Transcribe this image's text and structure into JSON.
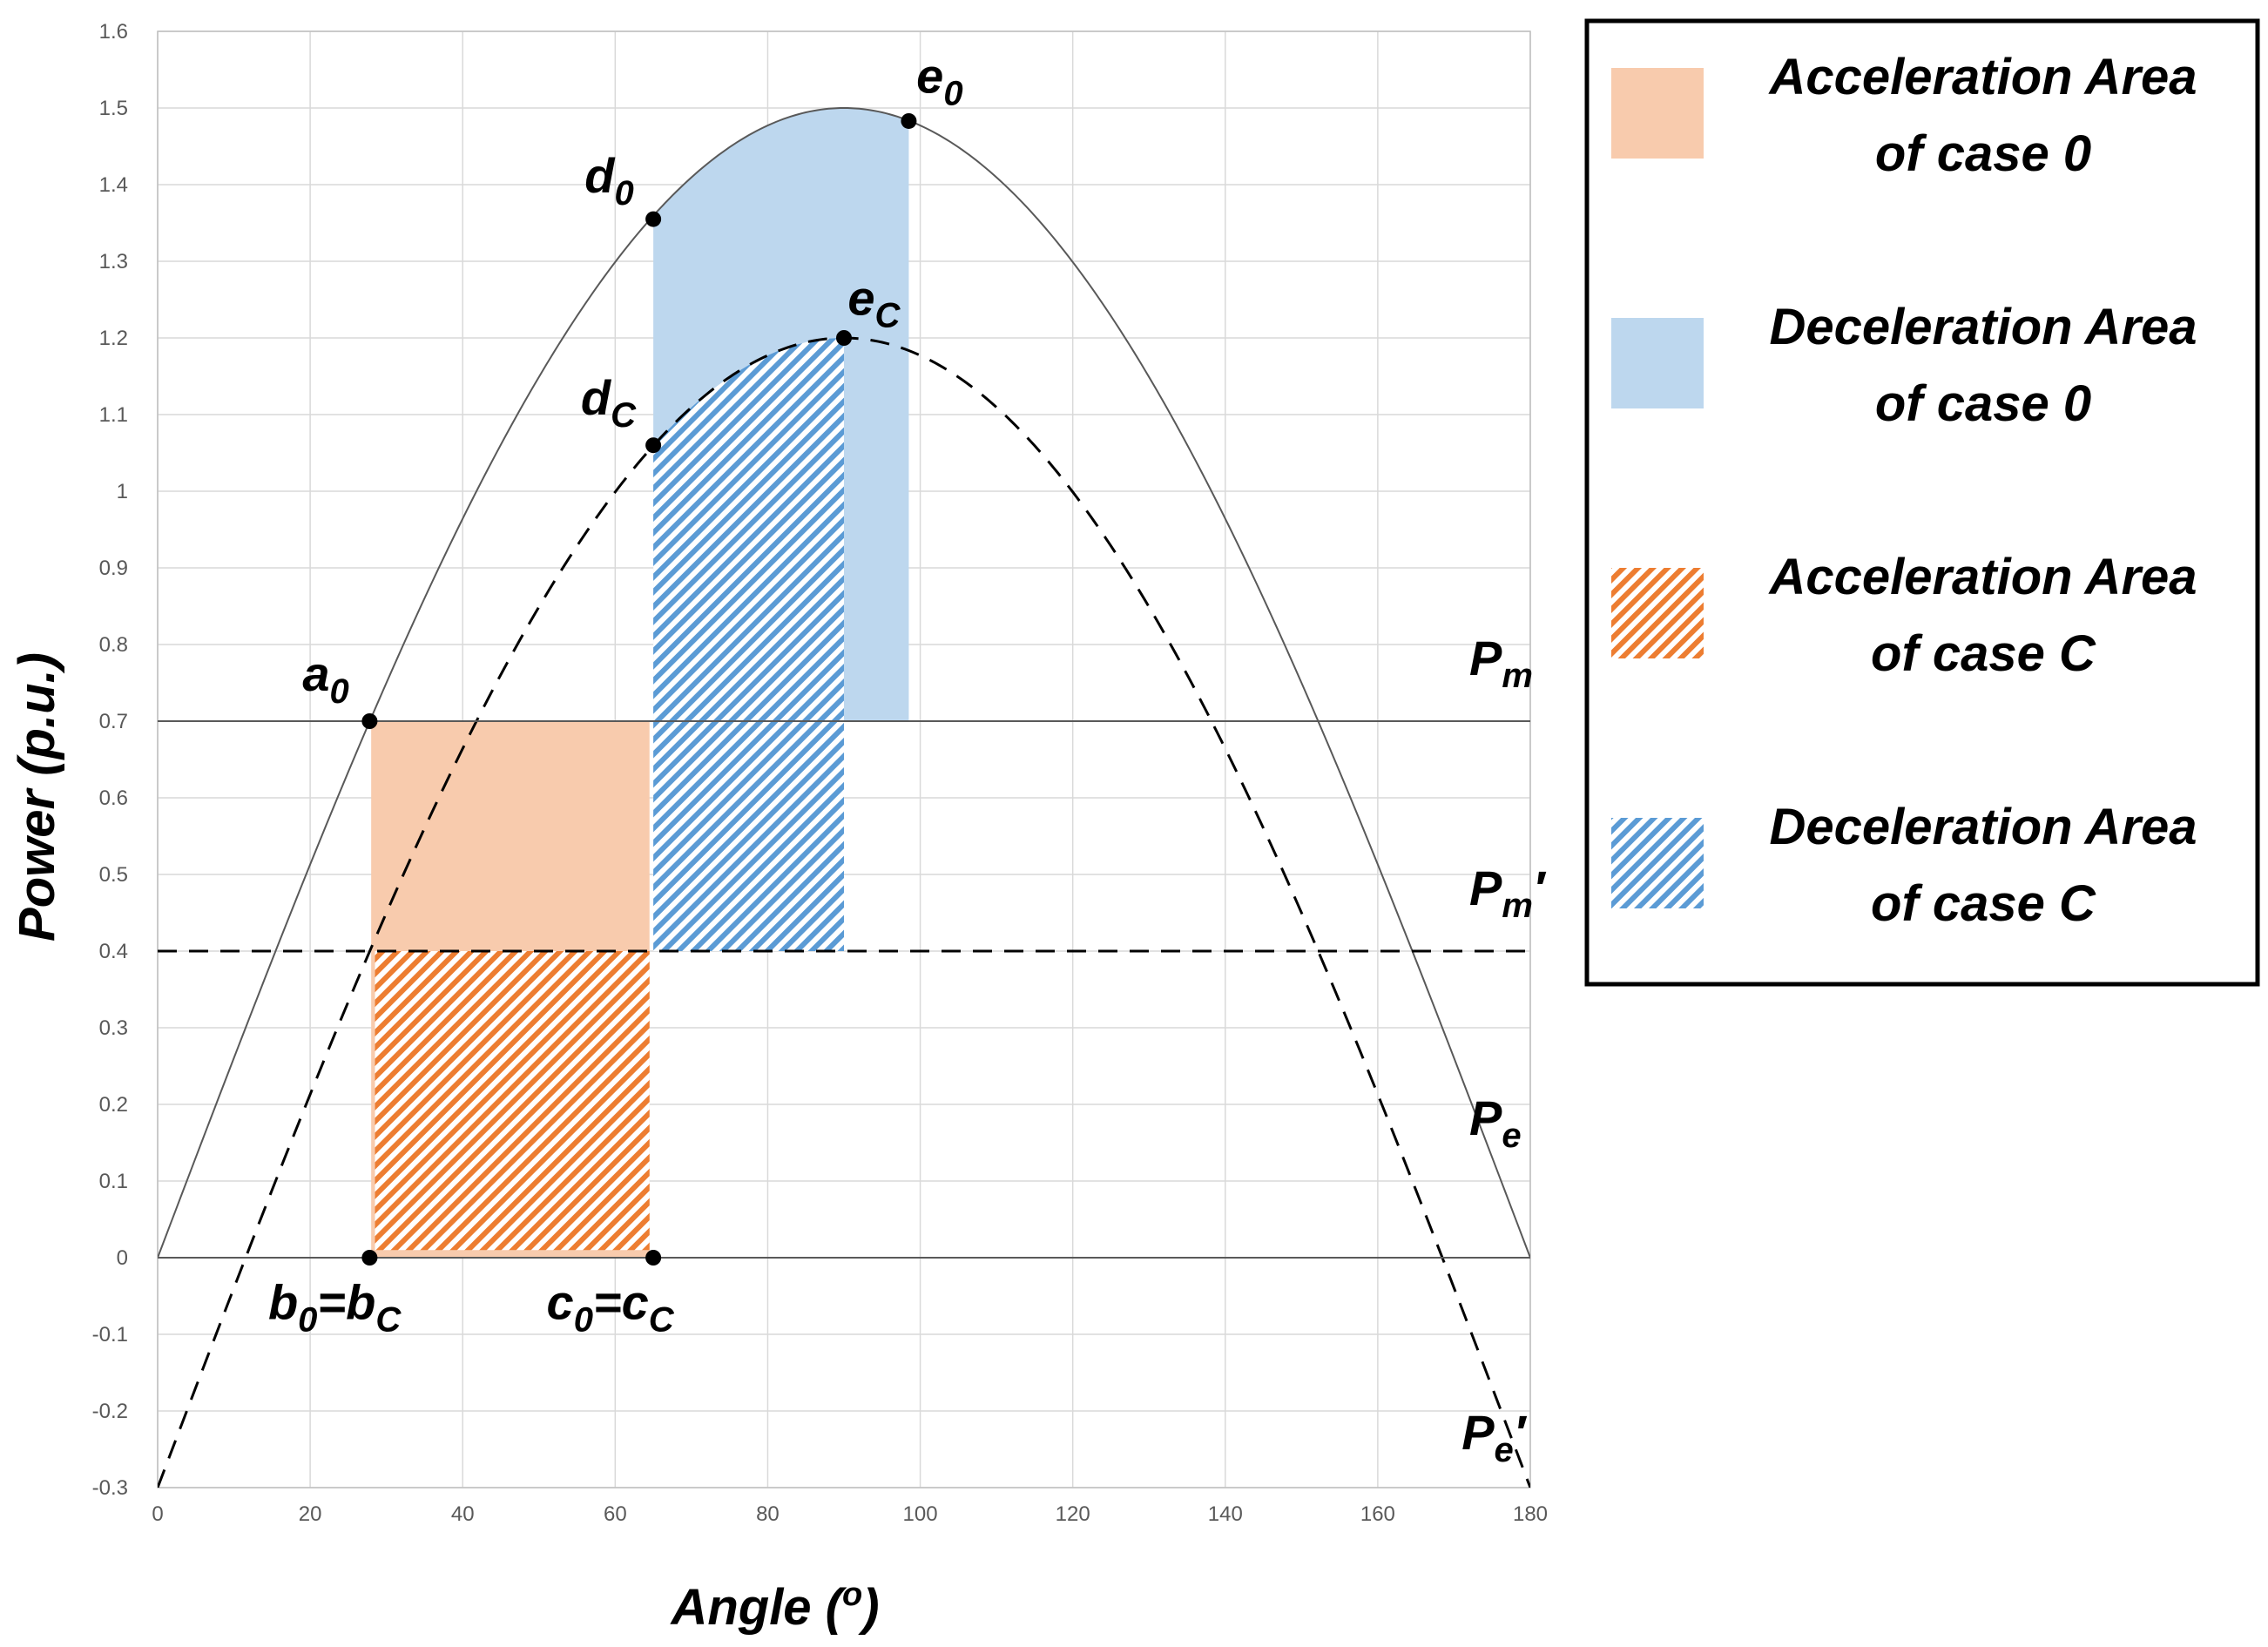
{
  "chart_data": {
    "type": "line",
    "title": "",
    "xlabel": "Angle (o)",
    "ylabel": "Power (p.u.)",
    "xlim": [
      0,
      180
    ],
    "ylim": [
      -0.3,
      1.6
    ],
    "xticks": [
      0,
      20,
      40,
      60,
      80,
      100,
      120,
      140,
      160,
      180
    ],
    "yticks": [
      -0.3,
      -0.2,
      -0.1,
      0,
      0.1,
      0.2,
      0.3,
      0.4,
      0.5,
      0.6,
      0.7,
      0.8,
      0.9,
      1,
      1.1,
      1.2,
      1.3,
      1.4,
      1.5,
      1.6
    ],
    "ytick_labels": [
      "-0.3",
      "-0.2",
      "-0.1",
      "0",
      "0.1",
      "0.2",
      "0.3",
      "0.4",
      "0.5",
      "0.6",
      "0.7",
      "0.8",
      "0.9",
      "1",
      "1.1",
      "1.2",
      "1.3",
      "1.4",
      "1.5",
      "1.6"
    ],
    "grid": true,
    "series": [
      {
        "name": "Pe",
        "formula": "1.5*sin(x)",
        "amplitude": 1.5,
        "offset": 0,
        "style": "solid"
      },
      {
        "name": "Pe'",
        "formula": "1.5*sin(x)-0.3",
        "amplitude": 1.5,
        "offset": -0.3,
        "style": "dashed"
      },
      {
        "name": "Pm",
        "constant": 0.7,
        "style": "solid"
      },
      {
        "name": "Pm'",
        "constant": 0.4,
        "style": "dashed"
      }
    ],
    "curve_labels": [
      {
        "id": "pm",
        "base": "P",
        "sub": "m",
        "prime": "",
        "x": 172,
        "y": 0.76
      },
      {
        "id": "pm_prime",
        "base": "P",
        "sub": "m",
        "prime": "′",
        "x": 172,
        "y": 0.46
      },
      {
        "id": "pe",
        "base": "P",
        "sub": "e",
        "prime": "",
        "x": 172,
        "y": 0.16
      },
      {
        "id": "pe_prime",
        "base": "P",
        "sub": "e",
        "prime": "′",
        "x": 171,
        "y": -0.25
      }
    ],
    "areas": [
      {
        "id": "acc_case0",
        "name": "Acceleration Area of case 0",
        "x_from": 28,
        "x_to": 64.5,
        "y_from": 0,
        "y_to": 0.7,
        "fill": "#F8CBAD",
        "hatch": false
      },
      {
        "id": "dec_case0",
        "name": "Deceleration Area of case 0",
        "x_from": 65,
        "x_to": 98.5,
        "y_from": 0.7,
        "upper": "Pe",
        "fill": "#BDD7EE",
        "hatch": false
      },
      {
        "id": "acc_caseC",
        "name": "Acceleration Area of case C",
        "x_from": 28.5,
        "x_to": 64.5,
        "y_from": 0.01,
        "y_to": 0.4,
        "color": "#ED7D31",
        "hatch": true
      },
      {
        "id": "dec_caseC",
        "name": "Deceleration Area of case C",
        "x_from": 65,
        "x_to": 90,
        "y_from": 0.4,
        "upper": "Pe'",
        "color": "#5B9BD5",
        "hatch": true
      }
    ],
    "points": [
      {
        "id": "a0",
        "base": "a",
        "sub": "0",
        "x": 27.8,
        "y": 0.7,
        "lx": 19,
        "ly": 0.74
      },
      {
        "id": "b0bc",
        "base": "b",
        "sub": "0",
        "tail_base": "=b",
        "tail_sub": "C",
        "x": 27.8,
        "y": 0,
        "lx": 14.5,
        "ly": -0.08
      },
      {
        "id": "c0cc",
        "base": "c",
        "sub": "0",
        "tail_base": "=c",
        "tail_sub": "C",
        "x": 65,
        "y": 0,
        "lx": 51,
        "ly": -0.08
      },
      {
        "id": "d0",
        "base": "d",
        "sub": "0",
        "x": 65,
        "y": 1.355,
        "lx": 56,
        "ly": 1.39
      },
      {
        "id": "dc",
        "base": "d",
        "sub": "C",
        "x": 65,
        "y": 1.06,
        "lx": 55.5,
        "ly": 1.1
      },
      {
        "id": "e0",
        "base": "e",
        "sub": "0",
        "x": 98.5,
        "y": 1.483,
        "lx": 99.5,
        "ly": 1.52
      },
      {
        "id": "ec",
        "base": "e",
        "sub": "C",
        "x": 90,
        "y": 1.2,
        "lx": 90.5,
        "ly": 1.23
      }
    ],
    "legend": {
      "position": "right",
      "items": [
        {
          "line1": "Acceleration Area",
          "line2": "of case 0",
          "color": "#F8CBAD",
          "hatch": false
        },
        {
          "line1": "Deceleration Area",
          "line2": "of case 0",
          "color": "#BDD7EE",
          "hatch": false
        },
        {
          "line1": "Acceleration Area",
          "line2": "of case C",
          "color": "#ED7D31",
          "hatch": true
        },
        {
          "line1": "Deceleration Area",
          "line2": "of case C",
          "color": "#5B9BD5",
          "hatch": true
        }
      ]
    }
  }
}
